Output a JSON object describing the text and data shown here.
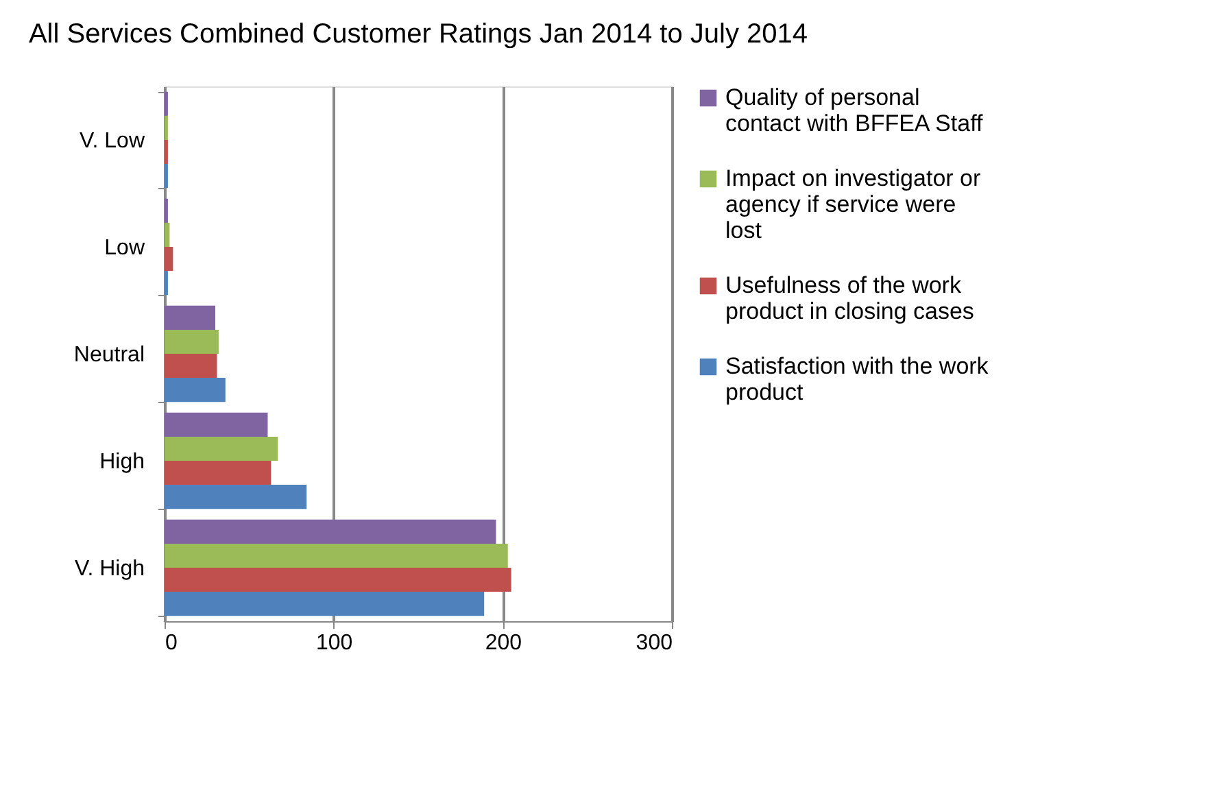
{
  "chart_data": {
    "type": "bar",
    "orientation": "horizontal",
    "title": "All Services Combined Customer Ratings Jan 2014 to July 2014",
    "categories": [
      "V. Low",
      "Low",
      "Neutral",
      "High",
      "V. High"
    ],
    "series": [
      {
        "name": "Quality of personal contact with BFFEA Staff",
        "color": "#8064a2",
        "values": [
          2,
          2,
          30,
          61,
          196
        ]
      },
      {
        "name": "Impact on investigator or agency if service were lost",
        "color": "#9bbb59",
        "values": [
          2,
          3,
          32,
          67,
          203
        ]
      },
      {
        "name": "Usefulness of the work product in closing cases",
        "color": "#c0504d",
        "values": [
          2,
          5,
          31,
          63,
          205
        ]
      },
      {
        "name": "Satisfaction with the work product",
        "color": "#4f81bd",
        "values": [
          2,
          2,
          36,
          84,
          189
        ]
      }
    ],
    "xlim": [
      0,
      300
    ],
    "xticks": [
      0,
      100,
      200,
      300
    ],
    "grid": "x",
    "legend": "right"
  }
}
